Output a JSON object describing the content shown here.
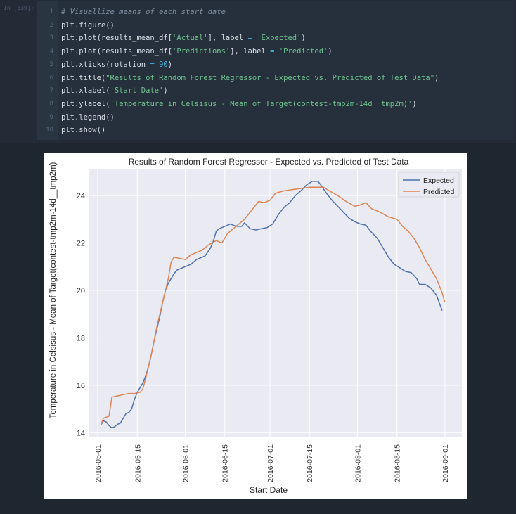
{
  "cell": {
    "prompt": "In [339]:",
    "lines": [
      {
        "num": "1",
        "parts": [
          {
            "t": "# Visuallize means of each start date",
            "c": "cm"
          }
        ]
      },
      {
        "num": "2",
        "parts": [
          {
            "t": "plt.figure()",
            "c": ""
          }
        ]
      },
      {
        "num": "3",
        "parts": [
          {
            "t": "plt.plot(results_mean_df[",
            "c": ""
          },
          {
            "t": "'Actual'",
            "c": "st"
          },
          {
            "t": "], label ",
            "c": ""
          },
          {
            "t": "=",
            "c": "op"
          },
          {
            "t": " ",
            "c": ""
          },
          {
            "t": "'Expected'",
            "c": "st"
          },
          {
            "t": ")",
            "c": ""
          }
        ]
      },
      {
        "num": "4",
        "parts": [
          {
            "t": "plt.plot(results_mean_df[",
            "c": ""
          },
          {
            "t": "'Predictions'",
            "c": "st"
          },
          {
            "t": "], label ",
            "c": ""
          },
          {
            "t": "=",
            "c": "op"
          },
          {
            "t": " ",
            "c": ""
          },
          {
            "t": "'Predicted'",
            "c": "st"
          },
          {
            "t": ")",
            "c": ""
          }
        ]
      },
      {
        "num": "5",
        "parts": [
          {
            "t": "plt.xticks(rotation ",
            "c": ""
          },
          {
            "t": "=",
            "c": "op"
          },
          {
            "t": " ",
            "c": ""
          },
          {
            "t": "90",
            "c": "nu"
          },
          {
            "t": ")",
            "c": ""
          }
        ]
      },
      {
        "num": "6",
        "parts": [
          {
            "t": "plt.title(",
            "c": ""
          },
          {
            "t": "\"Results of Random Forest Regressor - Expected vs. Predicted of Test Data\"",
            "c": "st"
          },
          {
            "t": ")",
            "c": ""
          }
        ]
      },
      {
        "num": "7",
        "parts": [
          {
            "t": "plt.xlabel(",
            "c": ""
          },
          {
            "t": "'Start Date'",
            "c": "st"
          },
          {
            "t": ")",
            "c": ""
          }
        ]
      },
      {
        "num": "8",
        "parts": [
          {
            "t": "plt.ylabel(",
            "c": ""
          },
          {
            "t": "'Temperature in Celsisus - Mean of Target(contest-tmp2m-14d__tmp2m)'",
            "c": "st"
          },
          {
            "t": ")",
            "c": ""
          }
        ]
      },
      {
        "num": "9",
        "parts": [
          {
            "t": "plt.legend()",
            "c": ""
          }
        ]
      },
      {
        "num": "10",
        "parts": [
          {
            "t": "plt.show()",
            "c": ""
          }
        ]
      }
    ]
  },
  "colors": {
    "expected": "#4c72b0",
    "predicted": "#dd8452",
    "plot_bg": "#eaeaf2",
    "grid": "#ffffff"
  },
  "chart_data": {
    "type": "line",
    "title": "Results of Random Forest Regressor - Expected vs. Predicted of Test Data",
    "xlabel": "Start Date",
    "ylabel": "Temperature in Celsisus - Mean of Target(contest-tmp2m-14d__tmp2m)",
    "x_ticks": [
      "2016-05-01",
      "2016-05-15",
      "2016-06-01",
      "2016-06-15",
      "2016-07-01",
      "2016-07-15",
      "2016-08-01",
      "2016-08-15",
      "2016-09-01"
    ],
    "y_ticks": [
      14,
      16,
      18,
      20,
      22,
      24
    ],
    "xlim": [
      "2016-04-28",
      "2016-09-07"
    ],
    "ylim": [
      13.8,
      25.1
    ],
    "grid": true,
    "legend": "top-right",
    "series": [
      {
        "name": "Expected",
        "color": "#4c72b0",
        "points": [
          [
            "2016-05-02",
            14.3
          ],
          [
            "2016-05-03",
            14.5
          ],
          [
            "2016-05-04",
            14.45
          ],
          [
            "2016-05-05",
            14.3
          ],
          [
            "2016-05-06",
            14.2
          ],
          [
            "2016-05-07",
            14.25
          ],
          [
            "2016-05-08",
            14.35
          ],
          [
            "2016-05-09",
            14.4
          ],
          [
            "2016-05-10",
            14.6
          ],
          [
            "2016-05-11",
            14.8
          ],
          [
            "2016-05-12",
            14.85
          ],
          [
            "2016-05-13",
            15.0
          ],
          [
            "2016-05-14",
            15.4
          ],
          [
            "2016-05-15",
            15.7
          ],
          [
            "2016-05-16",
            15.9
          ],
          [
            "2016-05-17",
            16.1
          ],
          [
            "2016-05-18",
            16.4
          ],
          [
            "2016-05-19",
            16.8
          ],
          [
            "2016-05-20",
            17.3
          ],
          [
            "2016-05-21",
            17.9
          ],
          [
            "2016-05-22",
            18.4
          ],
          [
            "2016-05-23",
            18.9
          ],
          [
            "2016-05-24",
            19.5
          ],
          [
            "2016-05-25",
            20.0
          ],
          [
            "2016-05-26",
            20.3
          ],
          [
            "2016-05-27",
            20.5
          ],
          [
            "2016-05-28",
            20.7
          ],
          [
            "2016-05-29",
            20.85
          ],
          [
            "2016-05-30",
            20.9
          ],
          [
            "2016-06-01",
            21.0
          ],
          [
            "2016-06-02",
            21.05
          ],
          [
            "2016-06-03",
            21.1
          ],
          [
            "2016-06-04",
            21.2
          ],
          [
            "2016-06-05",
            21.3
          ],
          [
            "2016-06-06",
            21.35
          ],
          [
            "2016-06-08",
            21.45
          ],
          [
            "2016-06-10",
            21.8
          ],
          [
            "2016-06-11",
            22.1
          ],
          [
            "2016-06-12",
            22.5
          ],
          [
            "2016-06-13",
            22.6
          ],
          [
            "2016-06-15",
            22.7
          ],
          [
            "2016-06-17",
            22.8
          ],
          [
            "2016-06-19",
            22.7
          ],
          [
            "2016-06-21",
            22.7
          ],
          [
            "2016-06-22",
            22.85
          ],
          [
            "2016-06-24",
            22.6
          ],
          [
            "2016-06-26",
            22.55
          ],
          [
            "2016-06-28",
            22.6
          ],
          [
            "2016-06-30",
            22.65
          ],
          [
            "2016-07-02",
            22.8
          ],
          [
            "2016-07-04",
            23.2
          ],
          [
            "2016-07-06",
            23.5
          ],
          [
            "2016-07-08",
            23.7
          ],
          [
            "2016-07-10",
            24.0
          ],
          [
            "2016-07-12",
            24.2
          ],
          [
            "2016-07-14",
            24.45
          ],
          [
            "2016-07-16",
            24.6
          ],
          [
            "2016-07-18",
            24.6
          ],
          [
            "2016-07-19",
            24.45
          ],
          [
            "2016-07-21",
            24.1
          ],
          [
            "2016-07-23",
            23.8
          ],
          [
            "2016-07-25",
            23.55
          ],
          [
            "2016-07-27",
            23.3
          ],
          [
            "2016-07-29",
            23.05
          ],
          [
            "2016-07-31",
            22.9
          ],
          [
            "2016-08-02",
            22.8
          ],
          [
            "2016-08-04",
            22.75
          ],
          [
            "2016-08-06",
            22.45
          ],
          [
            "2016-08-08",
            22.2
          ],
          [
            "2016-08-10",
            21.8
          ],
          [
            "2016-08-12",
            21.4
          ],
          [
            "2016-08-14",
            21.1
          ],
          [
            "2016-08-16",
            20.95
          ],
          [
            "2016-08-18",
            20.8
          ],
          [
            "2016-08-20",
            20.75
          ],
          [
            "2016-08-22",
            20.5
          ],
          [
            "2016-08-23",
            20.25
          ],
          [
            "2016-08-25",
            20.25
          ],
          [
            "2016-08-27",
            20.1
          ],
          [
            "2016-08-29",
            19.8
          ],
          [
            "2016-08-31",
            19.15
          ]
        ]
      },
      {
        "name": "Predicted",
        "color": "#dd8452",
        "points": [
          [
            "2016-05-02",
            14.3
          ],
          [
            "2016-05-03",
            14.6
          ],
          [
            "2016-05-04",
            14.65
          ],
          [
            "2016-05-05",
            14.7
          ],
          [
            "2016-05-06",
            15.5
          ],
          [
            "2016-05-08",
            15.55
          ],
          [
            "2016-05-10",
            15.6
          ],
          [
            "2016-05-12",
            15.65
          ],
          [
            "2016-05-14",
            15.65
          ],
          [
            "2016-05-16",
            15.7
          ],
          [
            "2016-05-17",
            15.85
          ],
          [
            "2016-05-18",
            16.3
          ],
          [
            "2016-05-19",
            16.8
          ],
          [
            "2016-05-20",
            17.3
          ],
          [
            "2016-05-21",
            17.9
          ],
          [
            "2016-05-22",
            18.5
          ],
          [
            "2016-05-23",
            19.0
          ],
          [
            "2016-05-24",
            19.5
          ],
          [
            "2016-05-25",
            20.0
          ],
          [
            "2016-05-26",
            20.5
          ],
          [
            "2016-05-27",
            21.2
          ],
          [
            "2016-05-28",
            21.4
          ],
          [
            "2016-05-30",
            21.35
          ],
          [
            "2016-06-01",
            21.3
          ],
          [
            "2016-06-03",
            21.5
          ],
          [
            "2016-06-05",
            21.6
          ],
          [
            "2016-06-07",
            21.7
          ],
          [
            "2016-06-09",
            21.9
          ],
          [
            "2016-06-12",
            22.1
          ],
          [
            "2016-06-14",
            22.0
          ],
          [
            "2016-06-16",
            22.4
          ],
          [
            "2016-06-18",
            22.6
          ],
          [
            "2016-06-20",
            22.8
          ],
          [
            "2016-06-22",
            23.0
          ],
          [
            "2016-06-24",
            23.3
          ],
          [
            "2016-06-26",
            23.6
          ],
          [
            "2016-06-27",
            23.75
          ],
          [
            "2016-06-29",
            23.7
          ],
          [
            "2016-07-01",
            23.8
          ],
          [
            "2016-07-03",
            24.1
          ],
          [
            "2016-07-06",
            24.2
          ],
          [
            "2016-07-09",
            24.25
          ],
          [
            "2016-07-12",
            24.3
          ],
          [
            "2016-07-15",
            24.35
          ],
          [
            "2016-07-18",
            24.35
          ],
          [
            "2016-07-20",
            24.35
          ],
          [
            "2016-07-22",
            24.2
          ],
          [
            "2016-07-25",
            24.0
          ],
          [
            "2016-07-28",
            23.75
          ],
          [
            "2016-07-31",
            23.55
          ],
          [
            "2016-08-02",
            23.6
          ],
          [
            "2016-08-04",
            23.7
          ],
          [
            "2016-08-06",
            23.45
          ],
          [
            "2016-08-09",
            23.3
          ],
          [
            "2016-08-12",
            23.1
          ],
          [
            "2016-08-15",
            23.0
          ],
          [
            "2016-08-17",
            22.7
          ],
          [
            "2016-08-19",
            22.5
          ],
          [
            "2016-08-21",
            22.2
          ],
          [
            "2016-08-23",
            21.8
          ],
          [
            "2016-08-25",
            21.3
          ],
          [
            "2016-08-27",
            20.9
          ],
          [
            "2016-08-29",
            20.5
          ],
          [
            "2016-08-31",
            19.9
          ],
          [
            "2016-09-01",
            19.5
          ]
        ]
      }
    ]
  }
}
